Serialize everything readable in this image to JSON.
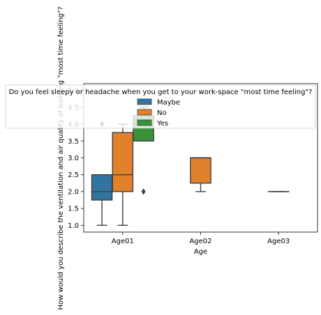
{
  "chart_data": {
    "type": "box",
    "xlabel": "Age",
    "ylabel": "How would you describe the ventilation and air quality of building \"most time feeling\"?",
    "categories": [
      "Age01",
      "Age02",
      "Age03"
    ],
    "ylim": [
      0.8,
      5.2
    ],
    "yticks": [
      1.0,
      1.5,
      2.0,
      2.5,
      3.0,
      3.5,
      4.0,
      4.5,
      5.0
    ],
    "ytick_labels": [
      "1.0",
      "1.5",
      "2.0",
      "2.5",
      "3.0",
      "3.5",
      "4.0",
      "4.5",
      "5.0"
    ],
    "grid": false,
    "legend": {
      "title": "Do you feel sleepy or headache when you get to your work-space \"most time feeling\"?",
      "placement": "upper-center",
      "entries": [
        "Maybe",
        "No",
        "Yes"
      ]
    },
    "series": [
      {
        "name": "Maybe",
        "color": "#3274a1",
        "boxes": [
          {
            "category": "Age01",
            "whisker_low": 1.0,
            "q1": 1.75,
            "median": 2.0,
            "q3": 2.5,
            "whisker_high": 2.5,
            "outliers": [
              4.0
            ]
          }
        ]
      },
      {
        "name": "No",
        "color": "#e1812c",
        "boxes": [
          {
            "category": "Age01",
            "whisker_low": 1.0,
            "q1": 2.0,
            "median": 2.5,
            "q3": 3.75,
            "whisker_high": 4.0,
            "outliers": []
          },
          {
            "category": "Age02",
            "whisker_low": 2.0,
            "q1": 2.25,
            "median": 3.0,
            "q3": 3.0,
            "whisker_high": 3.0,
            "outliers": []
          },
          {
            "category": "Age03",
            "whisker_low": 2.0,
            "q1": 2.0,
            "median": 2.0,
            "q3": 2.0,
            "whisker_high": 2.0,
            "outliers": []
          }
        ]
      },
      {
        "name": "Yes",
        "color": "#3a923a",
        "boxes": [
          {
            "category": "Age01",
            "whisker_low": 3.5,
            "q1": 3.5,
            "median": 4.0,
            "q3": 4.25,
            "whisker_high": 4.5,
            "outliers": [
              2.0
            ]
          }
        ]
      }
    ]
  }
}
